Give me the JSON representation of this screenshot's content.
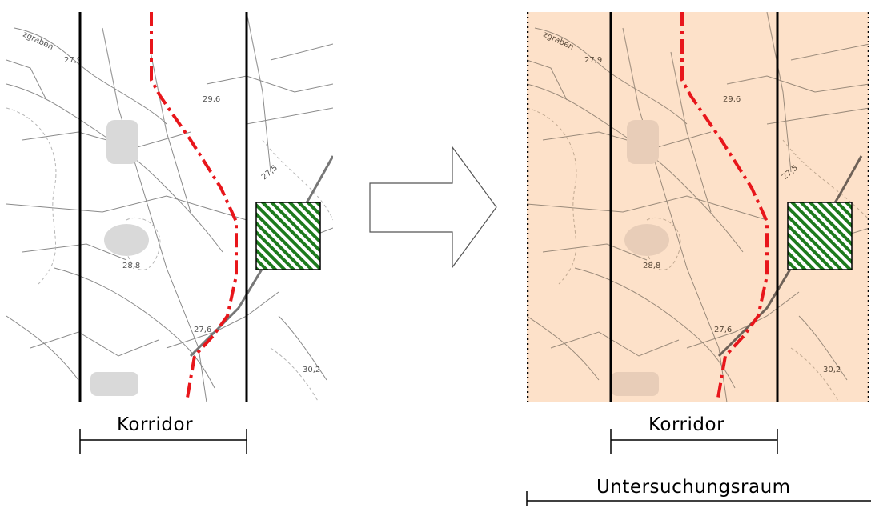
{
  "labels": {
    "corridor": "Korridor",
    "study_area": "Untersuchungsraum"
  },
  "map_labels": [
    "27,9",
    "29,6",
    "27,5",
    "28,8",
    "27,6",
    "30,2",
    "zgraben"
  ],
  "colors": {
    "corridor_line": "#000000",
    "route_line": "#e8161b",
    "hatch_green": "#1d7a1d",
    "study_area_fill": "#fde1c9",
    "map_lines": "#8a8a8a"
  },
  "icons": {
    "transition_arrow": "right-arrow-outline"
  }
}
